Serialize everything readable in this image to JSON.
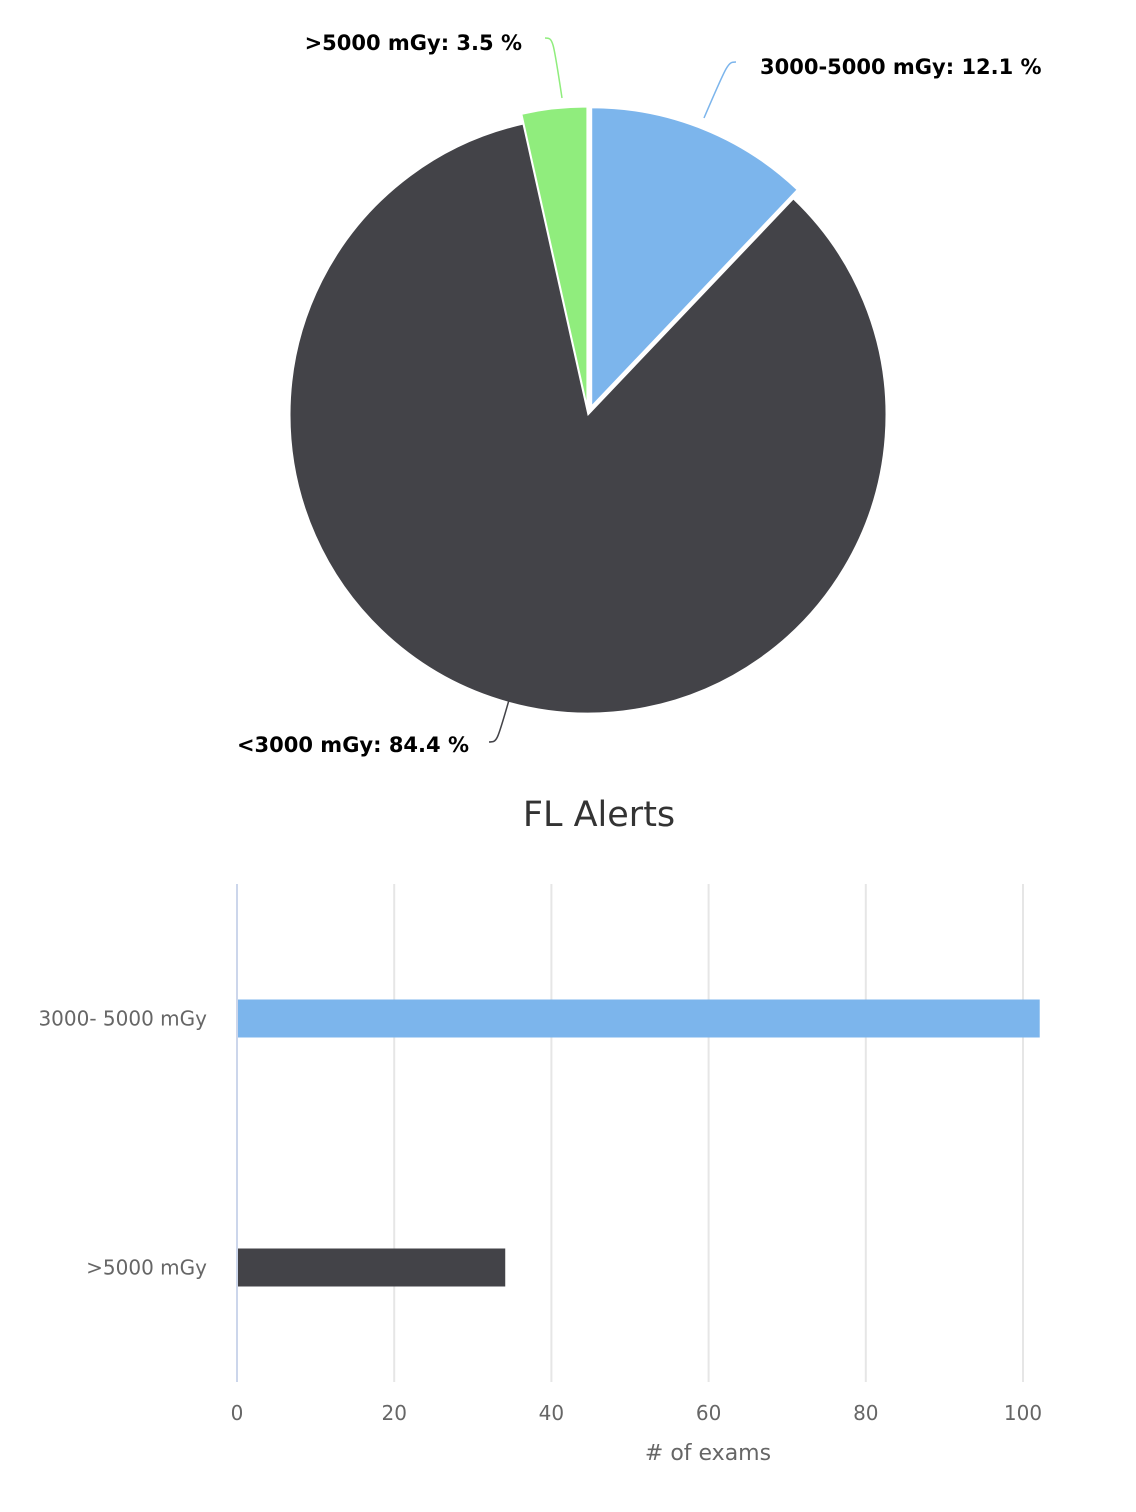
{
  "chart_data": [
    {
      "type": "pie",
      "slices": [
        {
          "label": "3000-5000 mGy: 12.1 %",
          "name": "3000-5000 mGy",
          "value": 12.1,
          "color": "#7cb5ec",
          "sliced": true
        },
        {
          "label": "<3000 mGy: 84.4 %",
          "name": "<3000 mGy",
          "value": 84.4,
          "color": "#434348",
          "sliced": false
        },
        {
          "label": ">5000 mGy: 3.5 %",
          "name": ">5000 mGy",
          "value": 3.5,
          "color": "#90ed7d",
          "sliced": true
        }
      ]
    },
    {
      "type": "bar",
      "title": "FL Alerts",
      "categories": [
        "3000- 5000 mGy",
        ">5000 mGy"
      ],
      "values": [
        102,
        34
      ],
      "colors": [
        "#7cb5ec",
        "#434348"
      ],
      "xlabel": "# of exams",
      "xticks": [
        "0",
        "20",
        "40",
        "60",
        "80",
        "100"
      ],
      "xlim": [
        0,
        100
      ],
      "grid": true
    }
  ]
}
